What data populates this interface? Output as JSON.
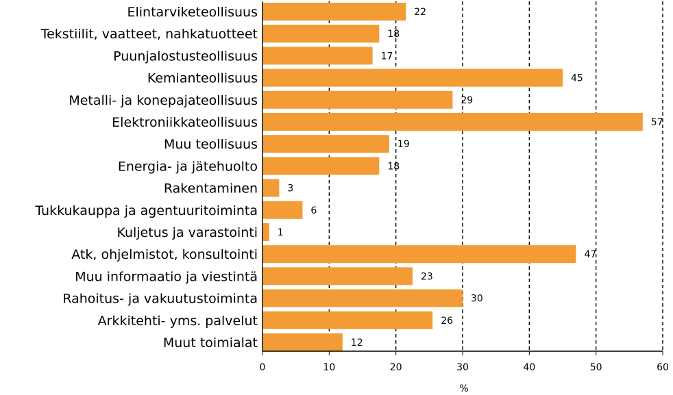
{
  "chart_data": {
    "type": "bar",
    "orientation": "horizontal",
    "categories": [
      "Elintarviketeollisuus",
      "Tekstiilit, vaatteet, nahkatuotteet",
      "Puunjalostusteollisuus",
      "Kemianteollisuus",
      "Metalli- ja konepajateollisuus",
      "Elektroniikkateollisuus",
      "Muu teollisuus",
      "Energia- ja jätehuolto",
      "Rakentaminen",
      "Tukkukauppa ja agentuuritoiminta",
      "Kuljetus ja varastointi",
      "Atk, ohjelmistot, konsultointi",
      "Muu informaatio ja viestintä",
      "Rahoitus- ja vakuutustoiminta",
      "Arkkitehti- yms. palvelut",
      "Muut toimialat"
    ],
    "values": [
      21.5,
      17.5,
      16.5,
      45,
      28.5,
      57,
      19,
      17.5,
      2.5,
      6,
      1,
      47,
      22.5,
      30,
      25.5,
      12
    ],
    "value_labels": [
      "22",
      "18",
      "17",
      "45",
      "29",
      "57",
      "19",
      "18",
      "3",
      "6",
      "1",
      "47",
      "23",
      "30",
      "26",
      "12"
    ],
    "xlabel": "%",
    "ylabel": "",
    "xlim": [
      0,
      60
    ],
    "xticks": [
      "0",
      "10",
      "20",
      "30",
      "40",
      "50",
      "60"
    ],
    "grid": "vertical dashed",
    "colors": {
      "bar": "#F39C35",
      "grid": "#000000",
      "axis": "#000000"
    }
  }
}
